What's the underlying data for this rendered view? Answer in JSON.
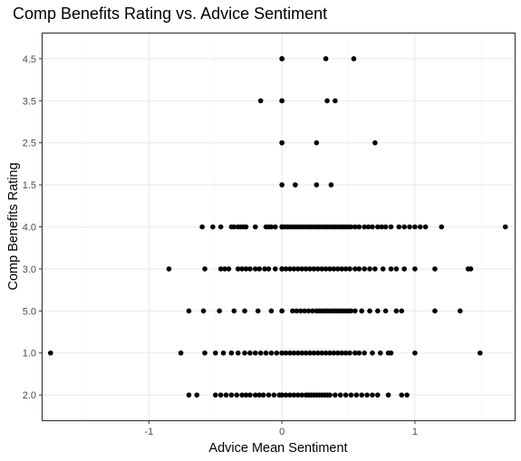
{
  "chart_data": {
    "type": "scatter",
    "title": "Comp Benefits Rating vs. Advice Sentiment",
    "xlabel": "Advice Mean Sentiment",
    "ylabel": "Comp Benefits Rating",
    "xlim": [
      -1.8,
      1.75
    ],
    "x_ticks": [
      -1,
      0,
      1
    ],
    "x_tick_labels": [
      "-1",
      "0",
      "1"
    ],
    "categories": [
      "2.0",
      "1.0",
      "5.0",
      "3.0",
      "4.0",
      "1.5",
      "2.5",
      "3.5",
      "4.5"
    ],
    "grid": true,
    "legend": "none",
    "point_color": "#000000",
    "series": [
      {
        "points": [
          {
            "category": "4.5",
            "x": [
              0.0,
              0.0,
              0.33,
              0.54
            ]
          },
          {
            "category": "3.5",
            "x": [
              -0.16,
              0.0,
              0.0,
              0.34,
              0.4
            ]
          },
          {
            "category": "2.5",
            "x": [
              0.0,
              0.0,
              0.26,
              0.7
            ]
          },
          {
            "category": "1.5",
            "x": [
              0.0,
              0.1,
              0.26,
              0.37
            ]
          },
          {
            "category": "4.0",
            "x": [
              -0.6,
              -0.52,
              -0.46,
              -0.38,
              -0.36,
              -0.33,
              -0.31,
              -0.29,
              -0.27,
              -0.2,
              -0.12,
              -0.1,
              -0.08,
              -0.05,
              0.0,
              0.0,
              0.0,
              0.02,
              0.04,
              0.06,
              0.08,
              0.1,
              0.12,
              0.14,
              0.16,
              0.18,
              0.2,
              0.22,
              0.24,
              0.26,
              0.28,
              0.3,
              0.32,
              0.34,
              0.36,
              0.38,
              0.4,
              0.42,
              0.44,
              0.46,
              0.48,
              0.5,
              0.52,
              0.55,
              0.58,
              0.62,
              0.65,
              0.68,
              0.72,
              0.75,
              0.78,
              0.82,
              0.88,
              0.92,
              0.96,
              1.0,
              1.04,
              1.08,
              1.2,
              1.68
            ]
          },
          {
            "category": "3.0",
            "x": [
              -0.85,
              -0.58,
              -0.46,
              -0.43,
              -0.4,
              -0.33,
              -0.3,
              -0.27,
              -0.24,
              -0.2,
              -0.17,
              -0.13,
              -0.1,
              -0.05,
              0.0,
              0.0,
              0.0,
              0.03,
              0.06,
              0.09,
              0.12,
              0.15,
              0.18,
              0.21,
              0.24,
              0.27,
              0.3,
              0.33,
              0.36,
              0.39,
              0.42,
              0.45,
              0.48,
              0.51,
              0.55,
              0.58,
              0.62,
              0.66,
              0.7,
              0.76,
              0.82,
              0.86,
              0.92,
              1.0,
              1.15,
              1.4,
              1.42
            ]
          },
          {
            "category": "5.0",
            "x": [
              -0.7,
              -0.59,
              -0.47,
              -0.36,
              -0.28,
              -0.18,
              -0.08,
              0.0,
              0.0,
              0.08,
              0.11,
              0.14,
              0.17,
              0.2,
              0.23,
              0.26,
              0.28,
              0.3,
              0.32,
              0.34,
              0.36,
              0.38,
              0.4,
              0.42,
              0.44,
              0.46,
              0.48,
              0.5,
              0.52,
              0.55,
              0.6,
              0.66,
              0.72,
              0.78,
              0.86,
              0.9,
              1.15,
              1.34
            ]
          },
          {
            "category": "1.0",
            "x": [
              -1.74,
              -0.76,
              -0.58,
              -0.5,
              -0.44,
              -0.38,
              -0.33,
              -0.28,
              -0.24,
              -0.2,
              -0.16,
              -0.12,
              -0.08,
              -0.04,
              0.0,
              0.0,
              0.0,
              0.03,
              0.06,
              0.09,
              0.12,
              0.15,
              0.18,
              0.21,
              0.24,
              0.27,
              0.3,
              0.33,
              0.36,
              0.39,
              0.42,
              0.45,
              0.48,
              0.51,
              0.55,
              0.58,
              0.62,
              0.68,
              0.74,
              0.8,
              0.82,
              1.0,
              1.49
            ]
          },
          {
            "category": "2.0",
            "x": [
              -0.7,
              -0.64,
              -0.5,
              -0.46,
              -0.42,
              -0.38,
              -0.34,
              -0.3,
              -0.27,
              -0.24,
              -0.2,
              -0.17,
              -0.14,
              -0.1,
              -0.06,
              -0.02,
              0.0,
              0.0,
              0.03,
              0.06,
              0.09,
              0.12,
              0.15,
              0.18,
              0.2,
              0.22,
              0.24,
              0.26,
              0.28,
              0.3,
              0.32,
              0.34,
              0.36,
              0.4,
              0.44,
              0.48,
              0.52,
              0.56,
              0.6,
              0.64,
              0.68,
              0.72,
              0.8,
              0.9,
              0.94
            ]
          }
        ]
      }
    ]
  }
}
